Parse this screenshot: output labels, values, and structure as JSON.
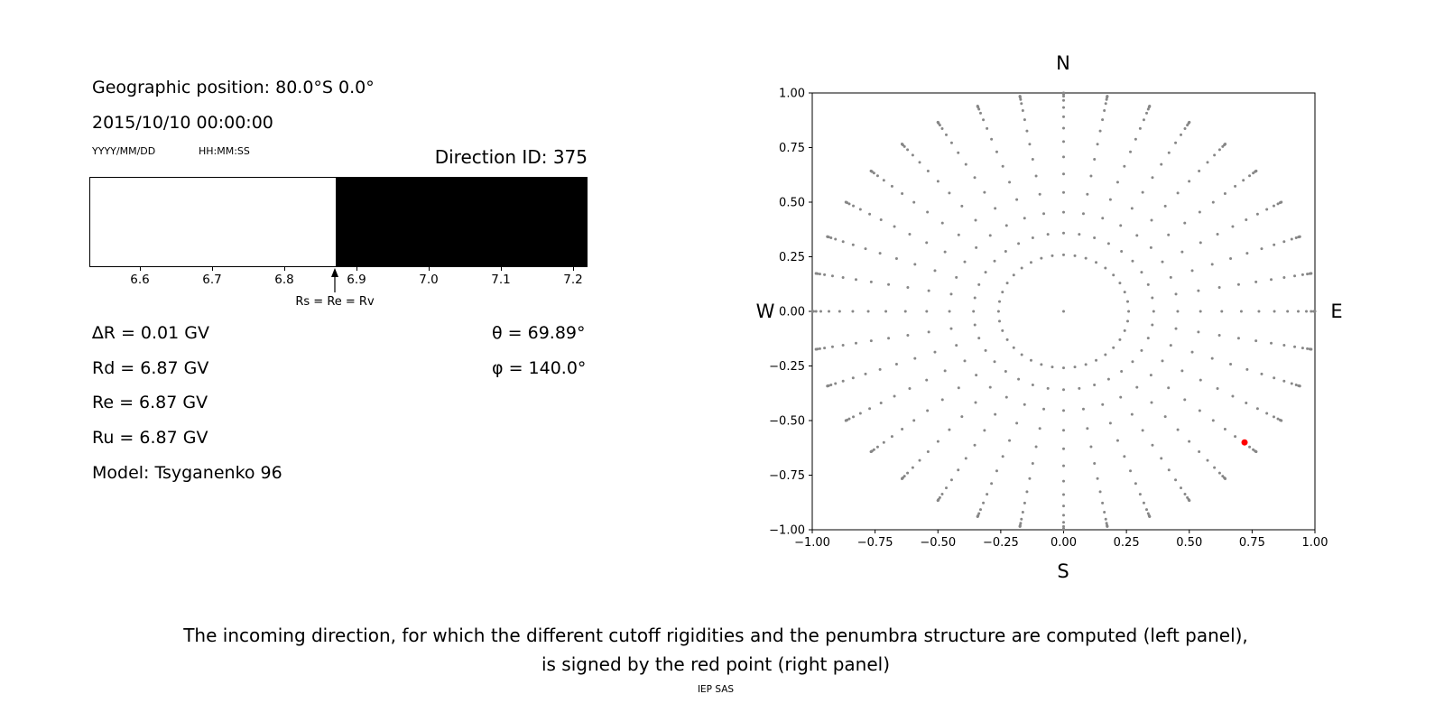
{
  "header": {
    "geographic_position": "Geographic position: 80.0°S 0.0°",
    "datetime": "2015/10/10 00:00:00",
    "date_format_label": "YYYY/MM/DD",
    "time_format_label": "HH:MM:SS",
    "direction_id_label": "Direction ID: 375"
  },
  "left_panel": {
    "info_lines": [
      "∆R = 0.01 GV",
      "Rd = 6.87 GV",
      "Re = 6.87 GV",
      "Ru = 6.87 GV",
      "Model: Tsyganenko 96"
    ],
    "theta_label": "θ = 69.89°",
    "phi_label": "φ = 140.0°"
  },
  "caption": {
    "line1": "The incoming direction, for which the different cutoff rigidities and the penumbra structure are computed (left panel),",
    "line2": "is signed by the red point (right panel)",
    "credit": "IEP SAS"
  },
  "chart_data": [
    {
      "type": "bar",
      "name": "penumbra-structure",
      "x_range": [
        6.53,
        7.22
      ],
      "x_ticks": [
        6.6,
        6.7,
        6.8,
        6.9,
        7.0,
        7.1,
        7.2
      ],
      "x_tick_decimals": 1,
      "regions": [
        {
          "from": 6.53,
          "to": 6.87,
          "color": "#ffffff"
        },
        {
          "from": 6.87,
          "to": 7.22,
          "color": "#000000"
        }
      ],
      "arrow": {
        "x": 6.87,
        "label": "Rs = Re = Rv"
      },
      "border_color": "#000000"
    },
    {
      "type": "scatter",
      "name": "incoming-direction-map",
      "xlim": [
        -1.0,
        1.0
      ],
      "ylim": [
        -1.0,
        1.0
      ],
      "x_ticks": [
        -1.0,
        -0.75,
        -0.5,
        -0.25,
        0.0,
        0.25,
        0.5,
        0.75,
        1.0
      ],
      "y_ticks": [
        -1.0,
        -0.75,
        -0.5,
        -0.25,
        0.0,
        0.25,
        0.5,
        0.75,
        1.0
      ],
      "tick_decimals": 2,
      "compass_labels": {
        "top": "N",
        "bottom": "S",
        "left": "W",
        "right": "E"
      },
      "grid_dots": {
        "color": "#878787",
        "dot_radius": 1.5,
        "azimuth_step_deg": 10,
        "zenith_angles_deg": [
          15,
          21,
          27,
          33,
          39,
          45,
          51,
          57,
          63,
          69,
          75,
          80,
          84,
          87,
          89,
          90
        ],
        "projection": "x = sin(zenith)*sin(azimuth), y = sin(zenith)*cos(azimuth)",
        "center_dot": true
      },
      "red_point": {
        "x": 0.72,
        "y": -0.6,
        "color": "#ff0000",
        "radius": 3.5
      }
    }
  ]
}
